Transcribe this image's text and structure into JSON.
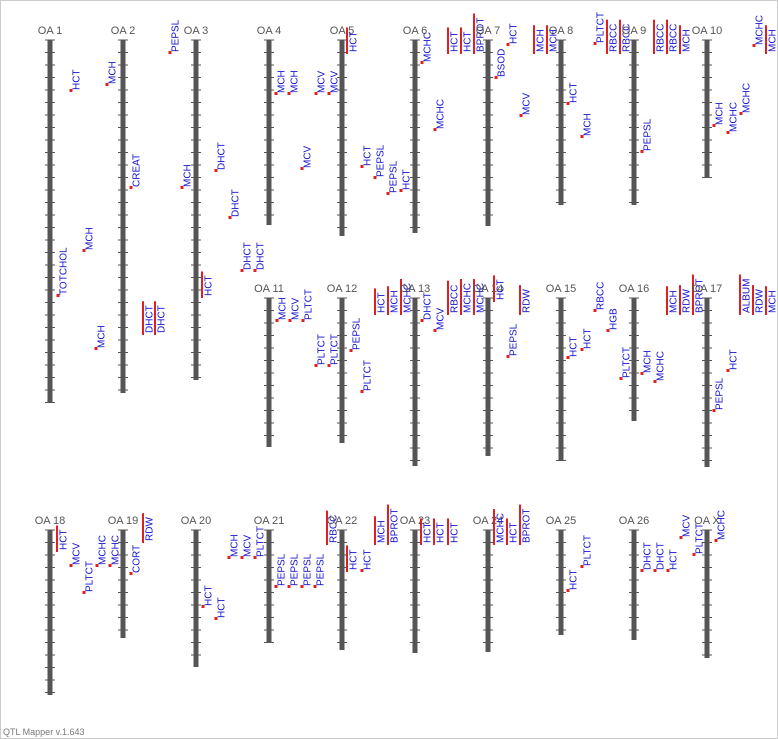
{
  "footer": "QTL Mapper v.1.643",
  "chromosomes": [
    {
      "name": "OA 1",
      "qtls": [
        "HCT",
        "TOTCHOL",
        "MCH",
        "MCH"
      ]
    },
    {
      "name": "OA 2",
      "qtls": [
        "MCH",
        "PEPSL",
        "CREAT",
        "DHCT",
        "DHCT"
      ]
    },
    {
      "name": "OA 3",
      "qtls": [
        "MCH",
        "DHCT",
        "DHCT",
        "DHCT",
        "DHCT",
        "HCT"
      ]
    },
    {
      "name": "OA 4",
      "qtls": [
        "MCH",
        "MCH",
        "MCV"
      ]
    },
    {
      "name": "OA 5",
      "qtls": [
        "MCV",
        "MCV",
        "HCT",
        "HCT",
        "PEPSL",
        "PEPSL",
        "HCT"
      ]
    },
    {
      "name": "OA 6",
      "qtls": [
        "MCHC",
        "MCHC",
        "HCT",
        "HCT",
        "BPROT"
      ]
    },
    {
      "name": "OA 7",
      "qtls": [
        "BSOD",
        "HCT",
        "MCV"
      ]
    },
    {
      "name": "OA 8",
      "qtls": [
        "MCH",
        "MCH",
        "HCT",
        "MCH",
        "PLTCT",
        "RBCC",
        "RBCC"
      ]
    },
    {
      "name": "OA 9",
      "qtls": [
        "PEPSL",
        "RBCC",
        "RBCC",
        "MCH"
      ]
    },
    {
      "name": "OA 10",
      "qtls": [
        "MCH",
        "MCHC",
        "MCHC",
        "MCHC",
        "MCH"
      ]
    },
    {
      "name": "OA 11",
      "qtls": [
        "MCH",
        "MCV",
        "PLTCT"
      ]
    },
    {
      "name": "OA 12",
      "qtls": [
        "PLTCT",
        "PLTCT",
        "PEPSL",
        "PLTCT",
        "HCT",
        "MCH",
        "MCHC"
      ]
    },
    {
      "name": "OA 13",
      "qtls": [
        "DHCT",
        "MCV",
        "RBCC",
        "MCHC",
        "MCHC"
      ]
    },
    {
      "name": "OA 14",
      "qtls": [
        "HCT",
        "PEPSL",
        "RDW"
      ]
    },
    {
      "name": "OA 15",
      "qtls": [
        "HCT",
        "HCT",
        "RBCC",
        "HGB"
      ]
    },
    {
      "name": "OA 16",
      "qtls": [
        "PLTCT",
        "MCH",
        "MCHC",
        "MCH",
        "RDW",
        "BPROT"
      ]
    },
    {
      "name": "OA 17",
      "qtls": [
        "PEPSL",
        "HCT",
        "ALBUM",
        "RDW",
        "MCH"
      ]
    },
    {
      "name": "OA 18",
      "qtls": [
        "HCT",
        "MCV",
        "PLTCT",
        "MCHC",
        "MCHC"
      ]
    },
    {
      "name": "OA 19",
      "qtls": [
        "CORT",
        "RDW"
      ]
    },
    {
      "name": "OA 20",
      "qtls": [
        "HCT",
        "HCT",
        "MCH",
        "MCV",
        "PLTCT"
      ]
    },
    {
      "name": "OA 21",
      "qtls": [
        "PEPSL",
        "PEPSL",
        "PEPSL",
        "PEPSL",
        "RBCC"
      ]
    },
    {
      "name": "OA 22",
      "qtls": [
        "HCT",
        "HCT",
        "MCH",
        "BPROT"
      ]
    },
    {
      "name": "OA 23",
      "qtls": [
        "HCT",
        "HCT",
        "HCT"
      ]
    },
    {
      "name": "OA 24",
      "qtls": [
        "MCHC",
        "HCT",
        "BPROT"
      ]
    },
    {
      "name": "OA 25",
      "qtls": [
        "HCT",
        "PLTCT"
      ]
    },
    {
      "name": "OA 26",
      "qtls": [
        "DHCT",
        "DHCT",
        "HCT",
        "MCV"
      ]
    },
    {
      "name": "OA X",
      "qtls": [
        "PLTCT",
        "MCHC"
      ]
    }
  ]
}
